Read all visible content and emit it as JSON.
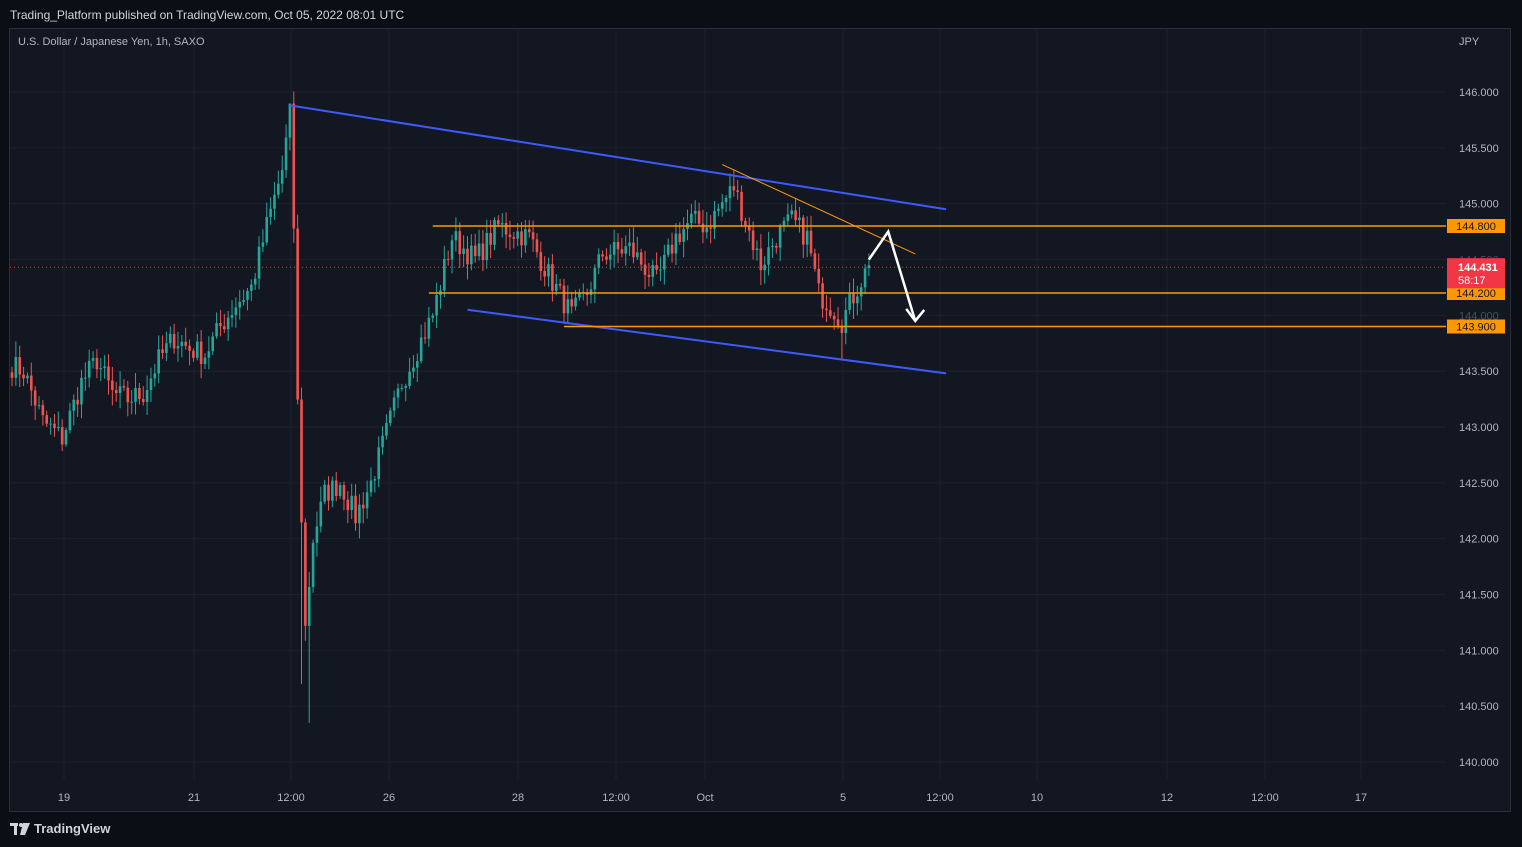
{
  "header": {
    "publisher_line": "Trading_Platform published on TradingView.com, Oct 05, 2022 08:01 UTC"
  },
  "footer": {
    "brand": "TradingView",
    "logo_icon": "tradingview-logo-icon"
  },
  "colors": {
    "background": "#131722",
    "up": "#26a69a",
    "down": "#ef5350",
    "channel": "#3d5afe",
    "level": "#ff9800",
    "arrow": "#ffffff",
    "grid": "#1e222d",
    "last_price": "#f23645"
  },
  "chart_data": {
    "type": "candlestick",
    "symbol_line": "U.S. Dollar / Japanese Yen, 1h, SAXO",
    "currency": "JPY",
    "ylim": [
      139.96,
      146.1
    ],
    "y_ticks": [
      "146.000",
      "145.500",
      "145.000",
      "144.500",
      "144.000",
      "143.500",
      "143.000",
      "142.500",
      "142.000",
      "141.500",
      "141.000",
      "140.500",
      "140.000"
    ],
    "x_ticks": [
      "19",
      "21",
      "12:00",
      "26",
      "28",
      "12:00",
      "Oct",
      "5",
      "12:00",
      "10",
      "12",
      "12:00",
      "17"
    ],
    "series": [
      {
        "name": "USD/JPY 1h",
        "waypoints": [
          {
            "i": 0,
            "p": 143.55
          },
          {
            "i": 3,
            "p": 143.5
          },
          {
            "i": 8,
            "p": 143.05
          },
          {
            "i": 13,
            "p": 142.9
          },
          {
            "i": 18,
            "p": 143.4
          },
          {
            "i": 22,
            "p": 143.6
          },
          {
            "i": 26,
            "p": 143.3
          },
          {
            "i": 30,
            "p": 143.25
          },
          {
            "i": 34,
            "p": 143.3
          },
          {
            "i": 38,
            "p": 143.6
          },
          {
            "i": 42,
            "p": 143.8
          },
          {
            "i": 46,
            "p": 143.7
          },
          {
            "i": 50,
            "p": 143.65
          },
          {
            "i": 54,
            "p": 143.9
          },
          {
            "i": 58,
            "p": 144.1
          },
          {
            "i": 62,
            "p": 144.25
          },
          {
            "i": 66,
            "p": 144.8
          },
          {
            "i": 70,
            "p": 145.3
          },
          {
            "i": 72,
            "p": 145.8
          },
          {
            "i": 73,
            "p": 144.8
          },
          {
            "i": 74,
            "p": 143.2
          },
          {
            "i": 76,
            "p": 141.2
          },
          {
            "i": 78,
            "p": 142.0
          },
          {
            "i": 81,
            "p": 142.4
          },
          {
            "i": 85,
            "p": 142.5
          },
          {
            "i": 89,
            "p": 142.2
          },
          {
            "i": 93,
            "p": 142.5
          },
          {
            "i": 97,
            "p": 142.95
          },
          {
            "i": 101,
            "p": 143.4
          },
          {
            "i": 105,
            "p": 143.7
          },
          {
            "i": 109,
            "p": 144.0
          },
          {
            "i": 114,
            "p": 144.7
          },
          {
            "i": 120,
            "p": 144.5
          },
          {
            "i": 126,
            "p": 144.8
          },
          {
            "i": 134,
            "p": 144.7
          },
          {
            "i": 140,
            "p": 144.3
          },
          {
            "i": 145,
            "p": 144.0
          },
          {
            "i": 149,
            "p": 144.2
          },
          {
            "i": 153,
            "p": 144.55
          },
          {
            "i": 160,
            "p": 144.6
          },
          {
            "i": 167,
            "p": 144.3
          },
          {
            "i": 172,
            "p": 144.7
          },
          {
            "i": 176,
            "p": 144.85
          },
          {
            "i": 180,
            "p": 144.8
          },
          {
            "i": 184,
            "p": 145.0
          },
          {
            "i": 187,
            "p": 145.15
          },
          {
            "i": 190,
            "p": 144.85
          },
          {
            "i": 194,
            "p": 144.45
          },
          {
            "i": 198,
            "p": 144.7
          },
          {
            "i": 202,
            "p": 144.85
          },
          {
            "i": 206,
            "p": 144.7
          },
          {
            "i": 209,
            "p": 144.2
          },
          {
            "i": 213,
            "p": 144.05
          },
          {
            "i": 215,
            "p": 143.95
          },
          {
            "i": 219,
            "p": 144.25
          },
          {
            "i": 222,
            "p": 144.45
          }
        ],
        "notable_wicks": [
          {
            "i": 72,
            "high": 145.88
          },
          {
            "i": 75,
            "low": 140.7
          },
          {
            "i": 77,
            "low": 140.35
          },
          {
            "i": 187,
            "high": 145.3
          },
          {
            "i": 215,
            "low": 143.6
          }
        ]
      }
    ],
    "annotations": {
      "horizontal_levels": [
        {
          "value": 144.8,
          "label": "144.800"
        },
        {
          "value": 144.2,
          "label": "144.200"
        },
        {
          "value": 143.9,
          "label": "143.900"
        }
      ],
      "last_price": {
        "value": 144.431,
        "label": "144.431",
        "countdown": "58:17"
      },
      "hidden_tick_labels": [
        "144.500",
        "144.000"
      ],
      "channel_upper": [
        {
          "i": 72,
          "p": 145.88
        },
        {
          "i": 242,
          "p": 144.95
        }
      ],
      "channel_lower": [
        {
          "i": 118,
          "p": 144.05
        },
        {
          "i": 242,
          "p": 143.48
        }
      ],
      "short_trendline": [
        {
          "i": 184,
          "p": 145.35
        },
        {
          "i": 234,
          "p": 144.55
        }
      ],
      "projected_path": [
        {
          "i": 222,
          "p": 144.5
        },
        {
          "i": 227,
          "p": 144.75
        },
        {
          "i": 234,
          "p": 143.95
        }
      ]
    }
  }
}
